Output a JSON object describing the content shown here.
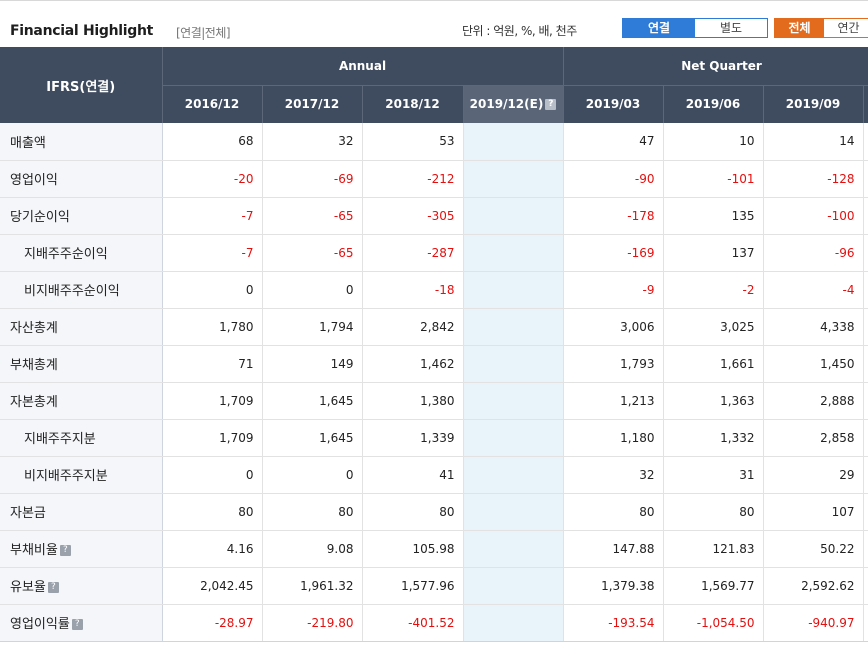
{
  "header": {
    "title": "Financial Highlight",
    "subtitle": "[연결|전체]",
    "unit": "단위 : 억원, %, 배, 천주",
    "toggle1": [
      "연결",
      "별도"
    ],
    "toggle2": [
      "전체",
      "연간"
    ]
  },
  "table": {
    "row_header": "IFRS(연결)",
    "group_annual": "Annual",
    "group_quarter": "Net Quarter",
    "columns": [
      "2016/12",
      "2017/12",
      "2018/12",
      "2019/12(E)",
      "2019/03",
      "2019/06",
      "2019/09"
    ],
    "rows": [
      {
        "label": "매출액",
        "sub": false,
        "info": false,
        "values": [
          "68",
          "32",
          "53",
          "",
          "47",
          "10",
          "14"
        ]
      },
      {
        "label": "영업이익",
        "sub": false,
        "info": false,
        "values": [
          "-20",
          "-69",
          "-212",
          "",
          "-90",
          "-101",
          "-128"
        ]
      },
      {
        "label": "당기순이익",
        "sub": false,
        "info": false,
        "values": [
          "-7",
          "-65",
          "-305",
          "",
          "-178",
          "135",
          "-100"
        ]
      },
      {
        "label": "지배주주순이익",
        "sub": true,
        "info": false,
        "values": [
          "-7",
          "-65",
          "-287",
          "",
          "-169",
          "137",
          "-96"
        ]
      },
      {
        "label": "비지배주주순이익",
        "sub": true,
        "info": false,
        "values": [
          "0",
          "0",
          "-18",
          "",
          "-9",
          "-2",
          "-4"
        ]
      },
      {
        "label": "자산총계",
        "sub": false,
        "info": false,
        "values": [
          "1,780",
          "1,794",
          "2,842",
          "",
          "3,006",
          "3,025",
          "4,338"
        ]
      },
      {
        "label": "부채총계",
        "sub": false,
        "info": false,
        "values": [
          "71",
          "149",
          "1,462",
          "",
          "1,793",
          "1,661",
          "1,450"
        ]
      },
      {
        "label": "자본총계",
        "sub": false,
        "info": false,
        "values": [
          "1,709",
          "1,645",
          "1,380",
          "",
          "1,213",
          "1,363",
          "2,888"
        ]
      },
      {
        "label": "지배주주지분",
        "sub": true,
        "info": false,
        "values": [
          "1,709",
          "1,645",
          "1,339",
          "",
          "1,180",
          "1,332",
          "2,858"
        ]
      },
      {
        "label": "비지배주주지분",
        "sub": true,
        "info": false,
        "values": [
          "0",
          "0",
          "41",
          "",
          "32",
          "31",
          "29"
        ]
      },
      {
        "label": "자본금",
        "sub": false,
        "info": false,
        "values": [
          "80",
          "80",
          "80",
          "",
          "80",
          "80",
          "107"
        ]
      },
      {
        "label": "부채비율",
        "sub": false,
        "info": true,
        "values": [
          "4.16",
          "9.08",
          "105.98",
          "",
          "147.88",
          "121.83",
          "50.22"
        ]
      },
      {
        "label": "유보율",
        "sub": false,
        "info": true,
        "values": [
          "2,042.45",
          "1,961.32",
          "1,577.96",
          "",
          "1,379.38",
          "1,569.77",
          "2,592.62"
        ]
      },
      {
        "label": "영업이익률",
        "sub": false,
        "info": true,
        "values": [
          "-28.97",
          "-219.80",
          "-401.52",
          "",
          "-193.54",
          "-1,054.50",
          "-940.97"
        ]
      }
    ]
  },
  "info_icon_glyph": "?"
}
